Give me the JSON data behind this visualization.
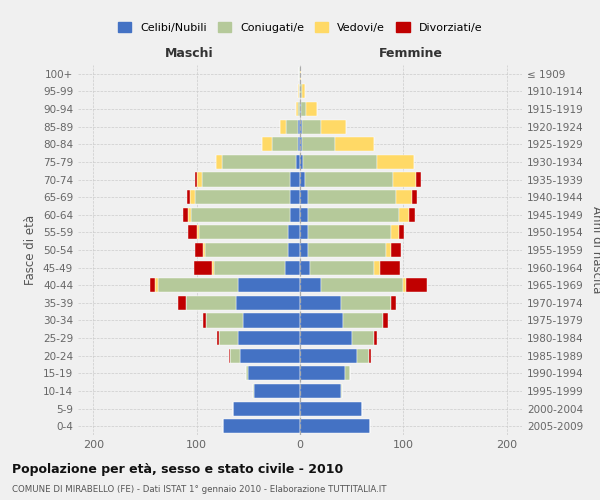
{
  "age_groups": [
    "0-4",
    "5-9",
    "10-14",
    "15-19",
    "20-24",
    "25-29",
    "30-34",
    "35-39",
    "40-44",
    "45-49",
    "50-54",
    "55-59",
    "60-64",
    "65-69",
    "70-74",
    "75-79",
    "80-84",
    "85-89",
    "90-94",
    "95-99",
    "100+"
  ],
  "birth_years": [
    "2005-2009",
    "2000-2004",
    "1995-1999",
    "1990-1994",
    "1985-1989",
    "1980-1984",
    "1975-1979",
    "1970-1974",
    "1965-1969",
    "1960-1964",
    "1955-1959",
    "1950-1954",
    "1945-1949",
    "1940-1944",
    "1935-1939",
    "1930-1934",
    "1925-1929",
    "1920-1924",
    "1915-1919",
    "1910-1914",
    "≤ 1909"
  ],
  "males": {
    "celibi": [
      75,
      65,
      45,
      50,
      58,
      60,
      55,
      62,
      60,
      15,
      12,
      12,
      10,
      10,
      10,
      4,
      2,
      2,
      0,
      0,
      0
    ],
    "coniugati": [
      0,
      0,
      1,
      2,
      10,
      18,
      36,
      48,
      78,
      68,
      80,
      86,
      96,
      92,
      85,
      72,
      25,
      12,
      2,
      1,
      1
    ],
    "vedovi": [
      0,
      0,
      0,
      0,
      0,
      0,
      0,
      0,
      2,
      2,
      2,
      2,
      2,
      5,
      5,
      5,
      10,
      5,
      2,
      1,
      0
    ],
    "divorziati": [
      0,
      0,
      0,
      0,
      1,
      2,
      3,
      8,
      5,
      18,
      8,
      8,
      5,
      2,
      2,
      0,
      0,
      0,
      0,
      0,
      0
    ]
  },
  "females": {
    "nubili": [
      68,
      60,
      40,
      44,
      55,
      50,
      42,
      40,
      20,
      10,
      8,
      8,
      8,
      8,
      5,
      3,
      2,
      2,
      1,
      0,
      0
    ],
    "coniugate": [
      0,
      0,
      1,
      4,
      12,
      22,
      38,
      48,
      80,
      62,
      75,
      80,
      88,
      85,
      85,
      72,
      32,
      18,
      5,
      2,
      0
    ],
    "vedove": [
      0,
      0,
      0,
      0,
      0,
      0,
      0,
      0,
      3,
      5,
      5,
      8,
      10,
      15,
      22,
      35,
      38,
      25,
      10,
      3,
      1
    ],
    "divorziate": [
      0,
      0,
      0,
      0,
      2,
      3,
      5,
      5,
      20,
      20,
      10,
      5,
      5,
      5,
      5,
      0,
      0,
      0,
      0,
      0,
      0
    ]
  },
  "colors": {
    "celibi_nubili": "#4472c4",
    "coniugati_e": "#b5c99a",
    "vedovi_e": "#ffd966",
    "divorziati_e": "#c00000"
  },
  "xlim": [
    -215,
    215
  ],
  "xticks": [
    -200,
    -100,
    0,
    100,
    200
  ],
  "xticklabels": [
    "200",
    "100",
    "0",
    "100",
    "200"
  ],
  "title": "Popolazione per età, sesso e stato civile - 2010",
  "subtitle": "COMUNE DI MIRABELLO (FE) - Dati ISTAT 1° gennaio 2010 - Elaborazione TUTTITALIA.IT",
  "ylabel_left": "Fasce di età",
  "ylabel_right": "Anni di nascita",
  "legend_labels": [
    "Celibi/Nubili",
    "Coniugati/e",
    "Vedovi/e",
    "Divorziati/e"
  ],
  "maschi_label": "Maschi",
  "femmine_label": "Femmine",
  "background_color": "#f0f0f0",
  "grid_color": "#cccccc"
}
